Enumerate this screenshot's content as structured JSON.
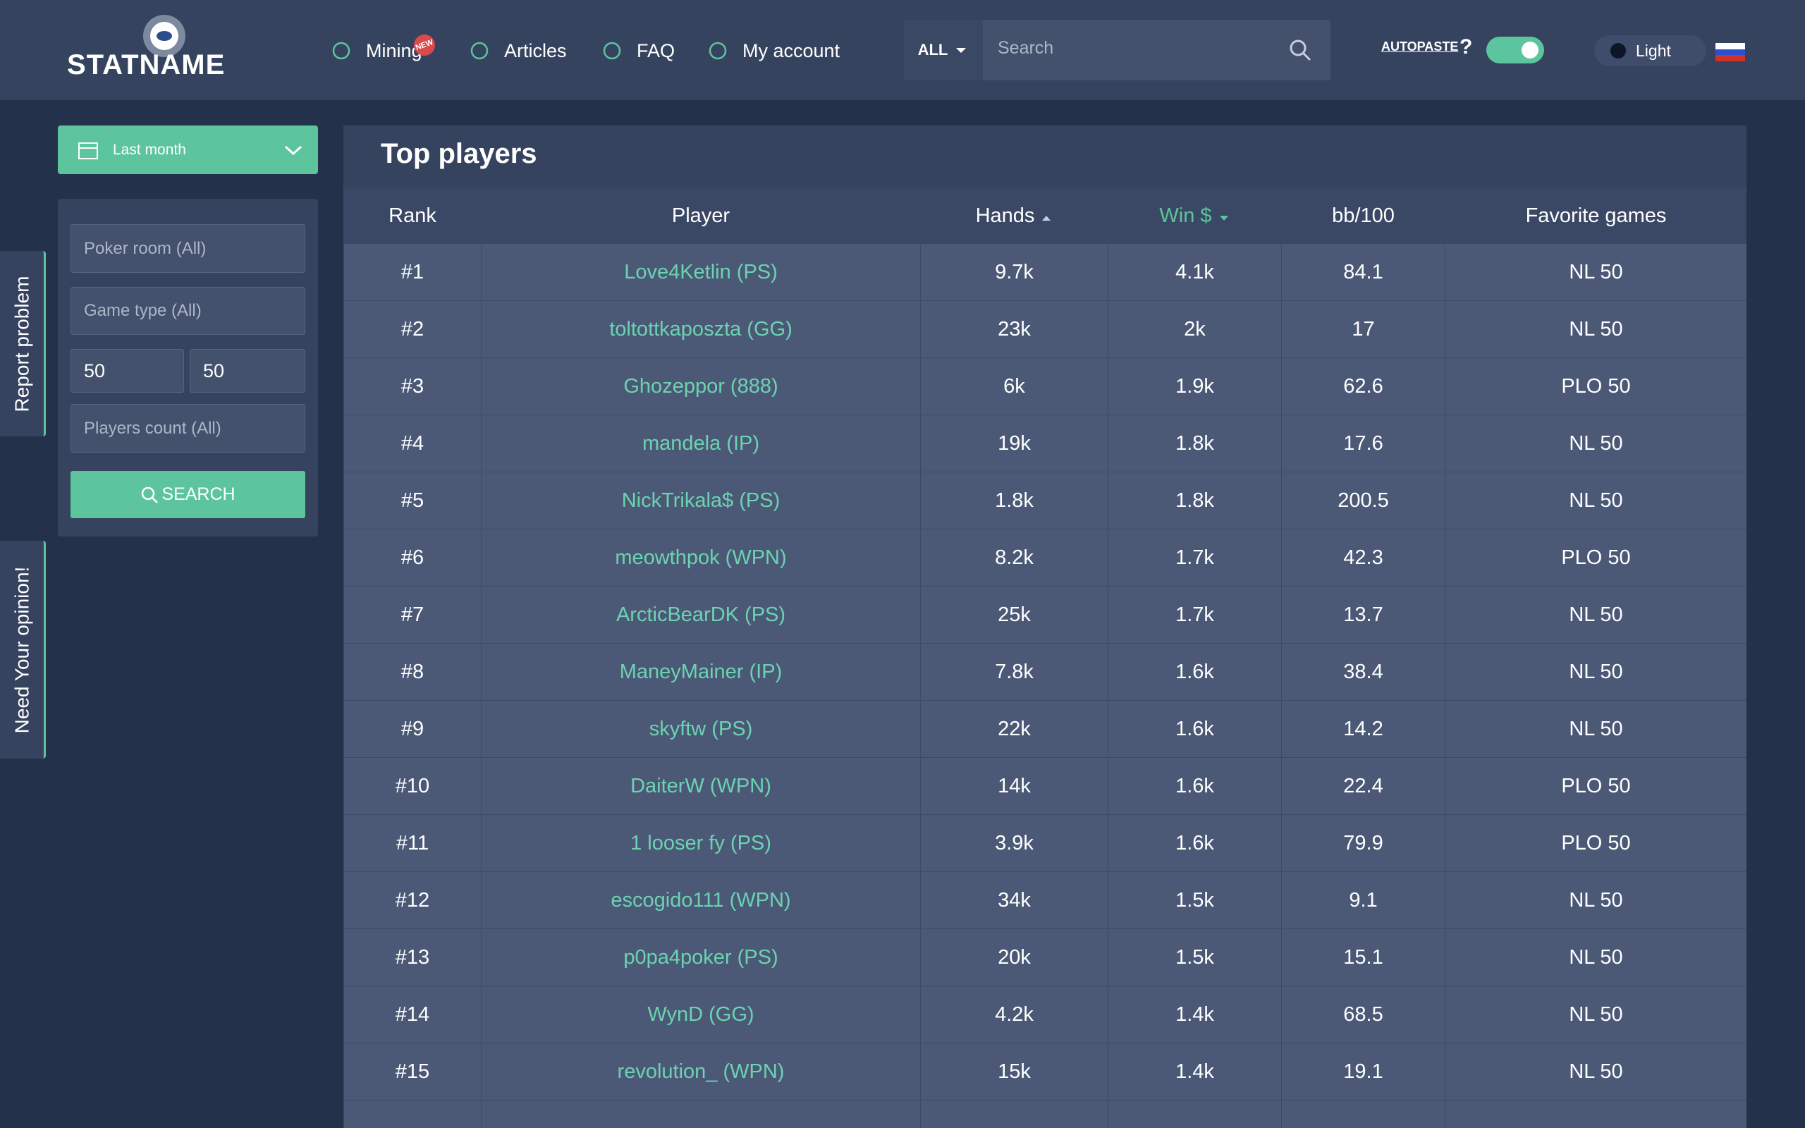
{
  "header": {
    "logo": "STATNAME",
    "nav": [
      {
        "label": "Mining",
        "badge": "NEW"
      },
      {
        "label": "Articles"
      },
      {
        "label": "FAQ"
      },
      {
        "label": "My account"
      }
    ],
    "search": {
      "scope": "ALL",
      "placeholder": "Search"
    },
    "autopaste": "AUTOPASTE",
    "help": "?",
    "theme": "Light"
  },
  "sidebar": {
    "period": "Last month",
    "filters": {
      "poker_room": "Poker room (All)",
      "game_type": "Game type (All)",
      "min": "50",
      "max": "50",
      "players_count": "Players count (All)"
    },
    "button": "SEARCH"
  },
  "side_tabs": [
    "Report problem",
    "Need Your opinion!"
  ],
  "table": {
    "title": "Top players",
    "columns": [
      "Rank",
      "Player",
      "Hands",
      "Win $",
      "bb/100",
      "Favorite games"
    ],
    "rows": [
      [
        "#1",
        "Love4Ketlin (PS)",
        "9.7k",
        "4.1k",
        "84.1",
        "NL 50"
      ],
      [
        "#2",
        "toltottkaposzta (GG)",
        "23k",
        "2k",
        "17",
        "NL 50"
      ],
      [
        "#3",
        "Ghozeppor (888)",
        "6k",
        "1.9k",
        "62.6",
        "PLO 50"
      ],
      [
        "#4",
        "mandela (IP)",
        "19k",
        "1.8k",
        "17.6",
        "NL 50"
      ],
      [
        "#5",
        "NickTrikala$ (PS)",
        "1.8k",
        "1.8k",
        "200.5",
        "NL 50"
      ],
      [
        "#6",
        "meowthpok (WPN)",
        "8.2k",
        "1.7k",
        "42.3",
        "PLO 50"
      ],
      [
        "#7",
        "ArcticBearDK (PS)",
        "25k",
        "1.7k",
        "13.7",
        "NL 50"
      ],
      [
        "#8",
        "ManeyMainer (IP)",
        "7.8k",
        "1.6k",
        "38.4",
        "NL 50"
      ],
      [
        "#9",
        "skyftw (PS)",
        "22k",
        "1.6k",
        "14.2",
        "NL 50"
      ],
      [
        "#10",
        "DaiterW (WPN)",
        "14k",
        "1.6k",
        "22.4",
        "PLO 50"
      ],
      [
        "#11",
        "1 looser fy (PS)",
        "3.9k",
        "1.6k",
        "79.9",
        "PLO 50"
      ],
      [
        "#12",
        "escogido111 (WPN)",
        "34k",
        "1.5k",
        "9.1",
        "NL 50"
      ],
      [
        "#13",
        "p0pa4poker (PS)",
        "20k",
        "1.5k",
        "15.1",
        "NL 50"
      ],
      [
        "#14",
        "WynD (GG)",
        "4.2k",
        "1.4k",
        "68.5",
        "NL 50"
      ],
      [
        "#15",
        "revolution_ (WPN)",
        "15k",
        "1.4k",
        "19.1",
        "NL 50"
      ]
    ]
  }
}
